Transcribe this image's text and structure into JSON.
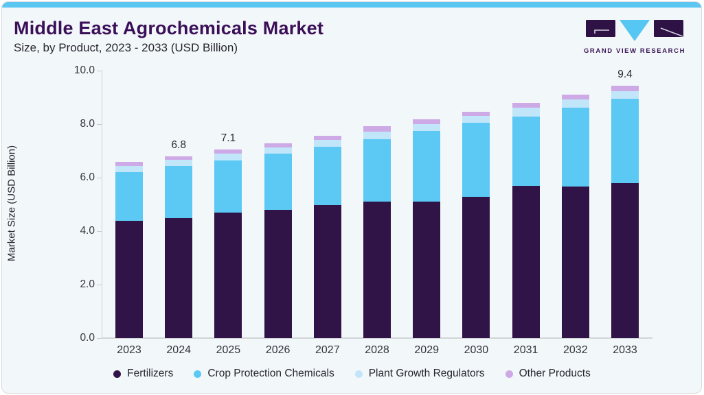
{
  "header": {
    "title": "Middle East Agrochemicals Market",
    "subtitle": "Size, by Product, 2023 - 2033 (USD Billion)"
  },
  "logo": {
    "text": "GRAND VIEW RESEARCH"
  },
  "chart_data": {
    "type": "bar",
    "stacked": true,
    "title": "Middle East Agrochemicals Market",
    "subtitle": "Size, by Product, 2023 - 2033 (USD Billion)",
    "ylabel": "Market Size (USD Billion)",
    "xlabel": "",
    "ylim": [
      0,
      10
    ],
    "y_ticks": [
      0,
      2,
      4,
      6,
      8,
      10
    ],
    "y_tick_labels": [
      "0.0",
      "2.0",
      "4.0",
      "6.0",
      "8.0",
      "10.0"
    ],
    "grid": false,
    "legend_position": "bottom",
    "categories": [
      "2023",
      "2024",
      "2025",
      "2026",
      "2027",
      "2028",
      "2029",
      "2030",
      "2031",
      "2032",
      "2033"
    ],
    "series": [
      {
        "name": "Fertilizers",
        "color": "#301347",
        "values": [
          4.38,
          4.49,
          4.7,
          4.8,
          4.98,
          5.11,
          5.11,
          5.29,
          5.7,
          5.67,
          5.8
        ]
      },
      {
        "name": "Crop Protection Chemicals",
        "color": "#5cc9f4",
        "values": [
          1.82,
          1.95,
          1.95,
          2.1,
          2.17,
          2.33,
          2.63,
          2.76,
          2.58,
          2.95,
          3.15
        ]
      },
      {
        "name": "Plant Growth Regulators",
        "color": "#c2e6f9",
        "values": [
          0.23,
          0.23,
          0.26,
          0.23,
          0.26,
          0.28,
          0.26,
          0.26,
          0.34,
          0.3,
          0.28
        ]
      },
      {
        "name": "Other Products",
        "color": "#cda9e6",
        "values": [
          0.15,
          0.13,
          0.15,
          0.15,
          0.15,
          0.2,
          0.18,
          0.15,
          0.17,
          0.18,
          0.21
        ]
      }
    ],
    "totals": [
      6.58,
      6.8,
      7.06,
      7.28,
      7.56,
      7.92,
      8.18,
      8.46,
      8.79,
      9.1,
      9.44
    ],
    "bar_total_labels": {
      "2024": "6.8",
      "2025": "7.1",
      "2033": "9.4"
    }
  },
  "colors": {
    "topbar_accent": "#5bc6ef",
    "card_bg": "#f2f7fa",
    "title_text": "#3b0f58",
    "body_text": "#26262e",
    "axis_line": "#cdd1d5"
  }
}
